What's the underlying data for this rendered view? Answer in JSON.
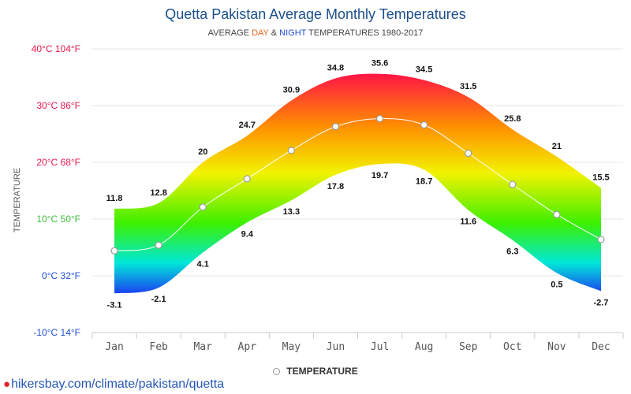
{
  "header": {
    "title": "Quetta Pakistan Average Monthly Temperatures",
    "subtitle_prefix": "AVERAGE",
    "subtitle_day": "DAY",
    "subtitle_amp": "&",
    "subtitle_night": "NIGHT",
    "subtitle_suffix": "TEMPERATURES 1980-2017"
  },
  "legend": {
    "label": "TEMPERATURE"
  },
  "footer": {
    "text": "hikersbay.com/climate/pakistan/quetta"
  },
  "colors": {
    "title": "#1c4f8a",
    "day": "#e8651a",
    "night": "#1f4fd6",
    "grid": "#e6e6e6",
    "link": "#2356b4"
  },
  "chart_data": {
    "type": "area",
    "title": "Quetta Pakistan Average Monthly Temperatures",
    "ylabel": "TEMPERATURE",
    "categories": [
      "Jan",
      "Feb",
      "Mar",
      "Apr",
      "May",
      "Jun",
      "Jul",
      "Aug",
      "Sep",
      "Oct",
      "Nov",
      "Dec"
    ],
    "ylim": [
      -10,
      40
    ],
    "y_ticks": [
      {
        "value": -10,
        "label": "-10°C 14°F",
        "color": "#1f4fd6"
      },
      {
        "value": 0,
        "label": "0°C 32°F",
        "color": "#1f4fd6"
      },
      {
        "value": 10,
        "label": "10°C 50°F",
        "color": "#3fbf3f"
      },
      {
        "value": 20,
        "label": "20°C 68°F",
        "color": "#e8174f"
      },
      {
        "value": 30,
        "label": "30°C 86°F",
        "color": "#e8174f"
      },
      {
        "value": 40,
        "label": "40°C 104°F",
        "color": "#e8174f"
      }
    ],
    "day": [
      11.8,
      12.8,
      20,
      24.7,
      30.9,
      34.8,
      35.6,
      34.5,
      31.5,
      25.8,
      21,
      15.5
    ],
    "night": [
      -3.1,
      -2.1,
      4.1,
      9.4,
      13.3,
      17.8,
      19.7,
      18.7,
      11.6,
      6.3,
      0.5,
      -2.7
    ],
    "series": [
      {
        "name": "TEMPERATURE",
        "values": [
          4.4,
          5.4,
          12.1,
          17.1,
          22.1,
          26.3,
          27.7,
          26.6,
          21.6,
          16.1,
          10.8,
          6.4
        ]
      }
    ],
    "grid": true,
    "legend_position": "bottom-center"
  }
}
